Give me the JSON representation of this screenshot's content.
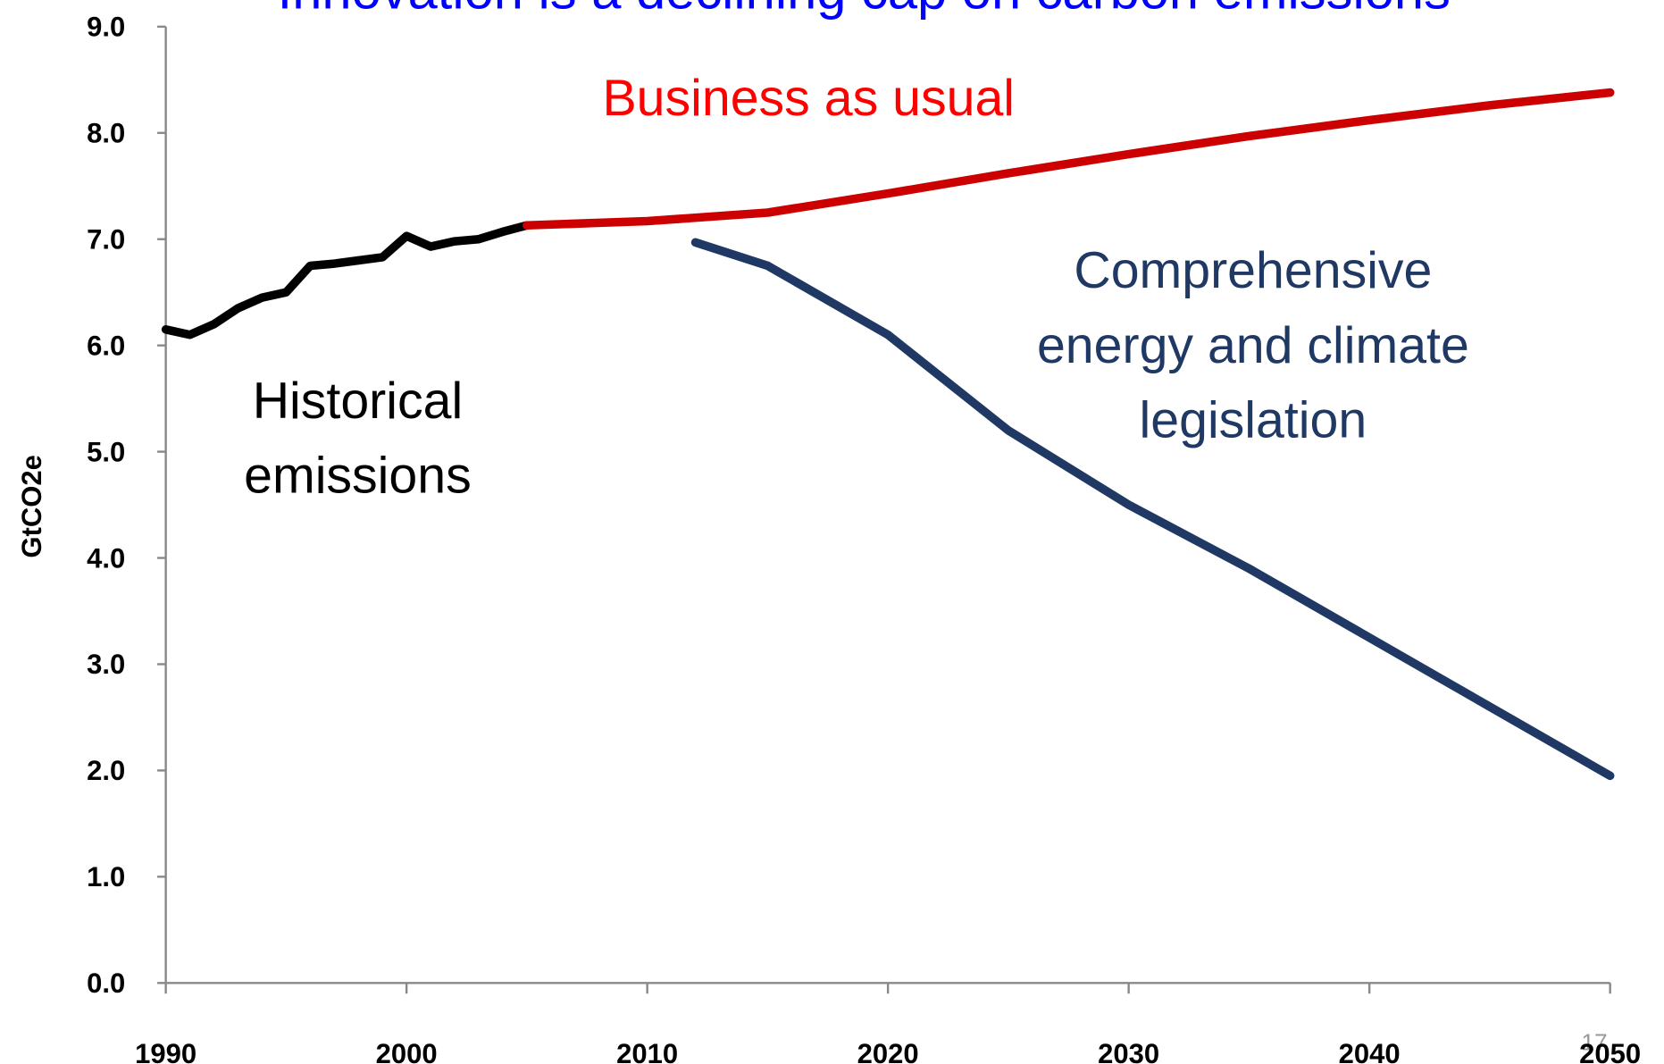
{
  "chart_data": {
    "type": "line",
    "title": "Innovation is a declining cap on carbon emissions",
    "y_label": "GtCO2e",
    "page_number": "17",
    "xlim": [
      1990,
      2050
    ],
    "xticks": [
      1990,
      2000,
      2010,
      2020,
      2030,
      2040,
      2050
    ],
    "ylim": [
      0,
      9
    ],
    "yticks": [
      {
        "value": 0,
        "label": "0.0"
      },
      {
        "value": 1,
        "label": "1.0"
      },
      {
        "value": 2,
        "label": "2.0"
      },
      {
        "value": 3,
        "label": "3.0"
      },
      {
        "value": 4,
        "label": "4.0"
      },
      {
        "value": 5,
        "label": "5.0"
      },
      {
        "value": 6,
        "label": "6.0"
      },
      {
        "value": 7,
        "label": "7.0"
      },
      {
        "value": 8,
        "label": "8.0"
      },
      {
        "value": 9,
        "label": "9.0"
      }
    ],
    "series": [
      {
        "color": "#000000",
        "x": [
          1990,
          1991,
          1992,
          1993,
          1994,
          1995,
          1996,
          1997,
          1998,
          1999,
          2000,
          2001,
          2002,
          2003,
          2004,
          2005
        ],
        "values": [
          6.15,
          6.1,
          6.2,
          6.35,
          6.45,
          6.5,
          6.75,
          6.77,
          6.8,
          6.83,
          7.03,
          6.93,
          6.98,
          7.0,
          7.07,
          7.13
        ]
      },
      {
        "color": "#cc0000",
        "x": [
          2005,
          2010,
          2015,
          2020,
          2025,
          2030,
          2035,
          2040,
          2045,
          2050
        ],
        "values": [
          7.13,
          7.17,
          7.25,
          7.43,
          7.62,
          7.8,
          7.97,
          8.12,
          8.26,
          8.38
        ]
      },
      {
        "color": "#1f3864",
        "x": [
          2012,
          2015,
          2020,
          2025,
          2030,
          2035,
          2040,
          2045,
          2050
        ],
        "values": [
          6.97,
          6.75,
          6.1,
          5.2,
          4.5,
          3.9,
          3.25,
          2.6,
          1.95
        ]
      }
    ],
    "annotations": [
      {
        "lines": [
          "Historical",
          "emissions"
        ],
        "color": "#000000"
      },
      {
        "lines": [
          "Business as usual"
        ],
        "color": "#ff0000"
      },
      {
        "lines": [
          "Comprehensive",
          "energy and climate",
          "legislation"
        ],
        "color": "#1f3864"
      }
    ]
  }
}
